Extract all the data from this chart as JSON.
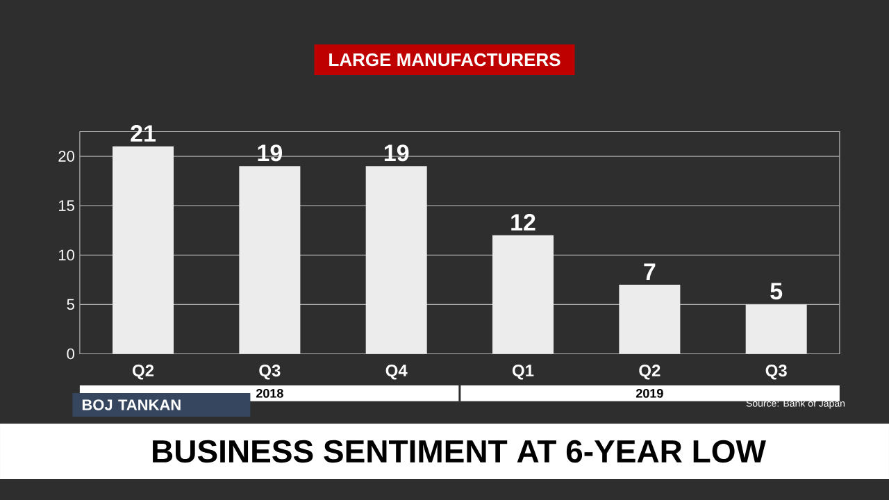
{
  "chart_data": {
    "type": "bar",
    "title": "LARGE MANUFACTURERS",
    "subtitle": "BUSINESS SENTIMENT AT 6-YEAR LOW",
    "categories": [
      "Q2",
      "Q3",
      "Q4",
      "Q1",
      "Q2",
      "Q3"
    ],
    "values": [
      21,
      19,
      19,
      12,
      7,
      5
    ],
    "color": "#ececec",
    "ylim": [
      0,
      22.5
    ],
    "yticks": [
      0,
      5,
      10,
      15,
      20
    ],
    "grid": "y",
    "data_labels": true,
    "annotations": [
      "2018",
      "2019",
      "BOJ TANKAN",
      "Source: Bank of Japan"
    ]
  }
}
